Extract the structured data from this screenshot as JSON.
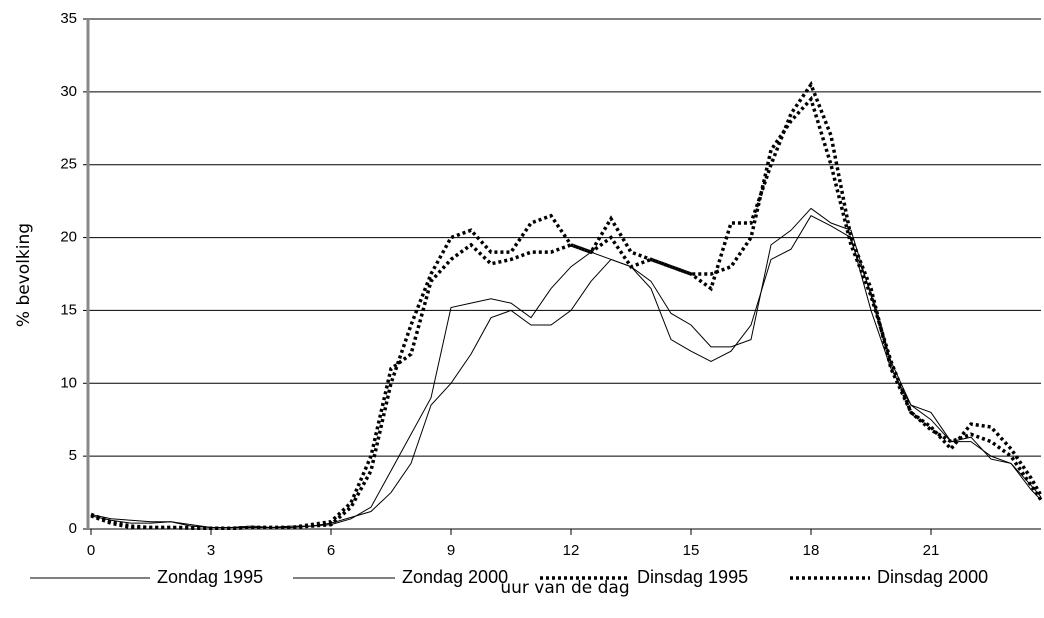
{
  "chart_data": {
    "type": "line",
    "x_label": "uur van de dag",
    "y_label": "% bevolking",
    "x": [
      0,
      0.5,
      1,
      1.5,
      2,
      2.5,
      3,
      3.5,
      4,
      4.5,
      5,
      5.5,
      6,
      6.5,
      7,
      7.5,
      8,
      8.5,
      9,
      9.5,
      10,
      10.5,
      11,
      11.5,
      12,
      12.5,
      13,
      13.5,
      14,
      14.5,
      15,
      15.5,
      16,
      16.5,
      17,
      17.5,
      18,
      18.5,
      19,
      19.5,
      20,
      20.5,
      21,
      21.5,
      22,
      22.5,
      23,
      23.5,
      23.75
    ],
    "series": [
      {
        "name": "Zondag 1995",
        "color": "#000000",
        "style": "solid",
        "values": [
          1,
          0.7,
          0.6,
          0.5,
          0.5,
          0.3,
          0.1,
          0.1,
          0.2,
          0.1,
          0.2,
          0.2,
          0.3,
          0.7,
          1.5,
          4,
          6.5,
          9,
          15.2,
          15.5,
          15.8,
          15.5,
          14.5,
          16.5,
          18,
          19,
          18.5,
          18,
          17,
          14.8,
          14,
          12.5,
          12.5,
          13,
          19.5,
          20.5,
          22,
          21,
          20.5,
          16,
          11.5,
          8.5,
          8,
          6,
          6,
          5,
          4.5,
          3,
          2.2
        ]
      },
      {
        "name": "Zondag 2000",
        "color": "#000000",
        "style": "solid",
        "values": [
          0.9,
          0.6,
          0.4,
          0.4,
          0.5,
          0.2,
          0.1,
          0.1,
          0.1,
          0.1,
          0.1,
          0.2,
          0.4,
          0.8,
          1.2,
          2.5,
          4.5,
          8.5,
          10,
          12,
          14.5,
          15,
          14,
          14,
          15,
          17,
          18.5,
          18,
          16.5,
          13,
          12.2,
          11.5,
          12.2,
          14,
          18.5,
          19.2,
          21.5,
          20.8,
          20,
          15,
          11,
          8.5,
          7.5,
          6,
          6.3,
          4.8,
          4.5,
          2.7,
          2
        ]
      },
      {
        "name": "Dinsdag 1995",
        "color": "#000000",
        "style": "dotted",
        "values": [
          1,
          0.5,
          0.2,
          0.1,
          0.1,
          0.1,
          0.05,
          0.05,
          0.1,
          0.1,
          0.1,
          0.3,
          0.5,
          1.8,
          5,
          11,
          12,
          17,
          18.5,
          19.5,
          18.2,
          18.5,
          19,
          19,
          19.5,
          19,
          20,
          18,
          18.5,
          18,
          17.5,
          17.5,
          18,
          20,
          26,
          28,
          29.5,
          25,
          19.5,
          16,
          11.5,
          8,
          6.8,
          6,
          6.5,
          6,
          5,
          3,
          2
        ]
      },
      {
        "name": "Dinsdag 2000",
        "color": "#000000",
        "style": "dotted",
        "values": [
          0.9,
          0.4,
          0.1,
          0.1,
          0.1,
          0.05,
          0.05,
          0.05,
          0.1,
          0.1,
          0.1,
          0.2,
          0.3,
          1.5,
          4,
          10,
          14,
          17.5,
          20,
          20.5,
          19,
          19,
          21,
          21.5,
          19.5,
          19,
          21.3,
          19,
          18.5,
          18,
          17.5,
          16.5,
          21,
          21,
          25,
          28.5,
          30.5,
          27,
          20,
          16.5,
          11,
          8,
          7,
          5.5,
          7.2,
          7,
          5.5,
          3.5,
          2.3
        ]
      }
    ],
    "xlim": [
      0,
      23.75
    ],
    "xticks": [
      0,
      3,
      6,
      9,
      12,
      15,
      18,
      21
    ],
    "ylim": [
      0,
      35
    ],
    "yticks": [
      0,
      5,
      10,
      15,
      20,
      25,
      30,
      35
    ],
    "grid": true,
    "legend": "bottom"
  }
}
